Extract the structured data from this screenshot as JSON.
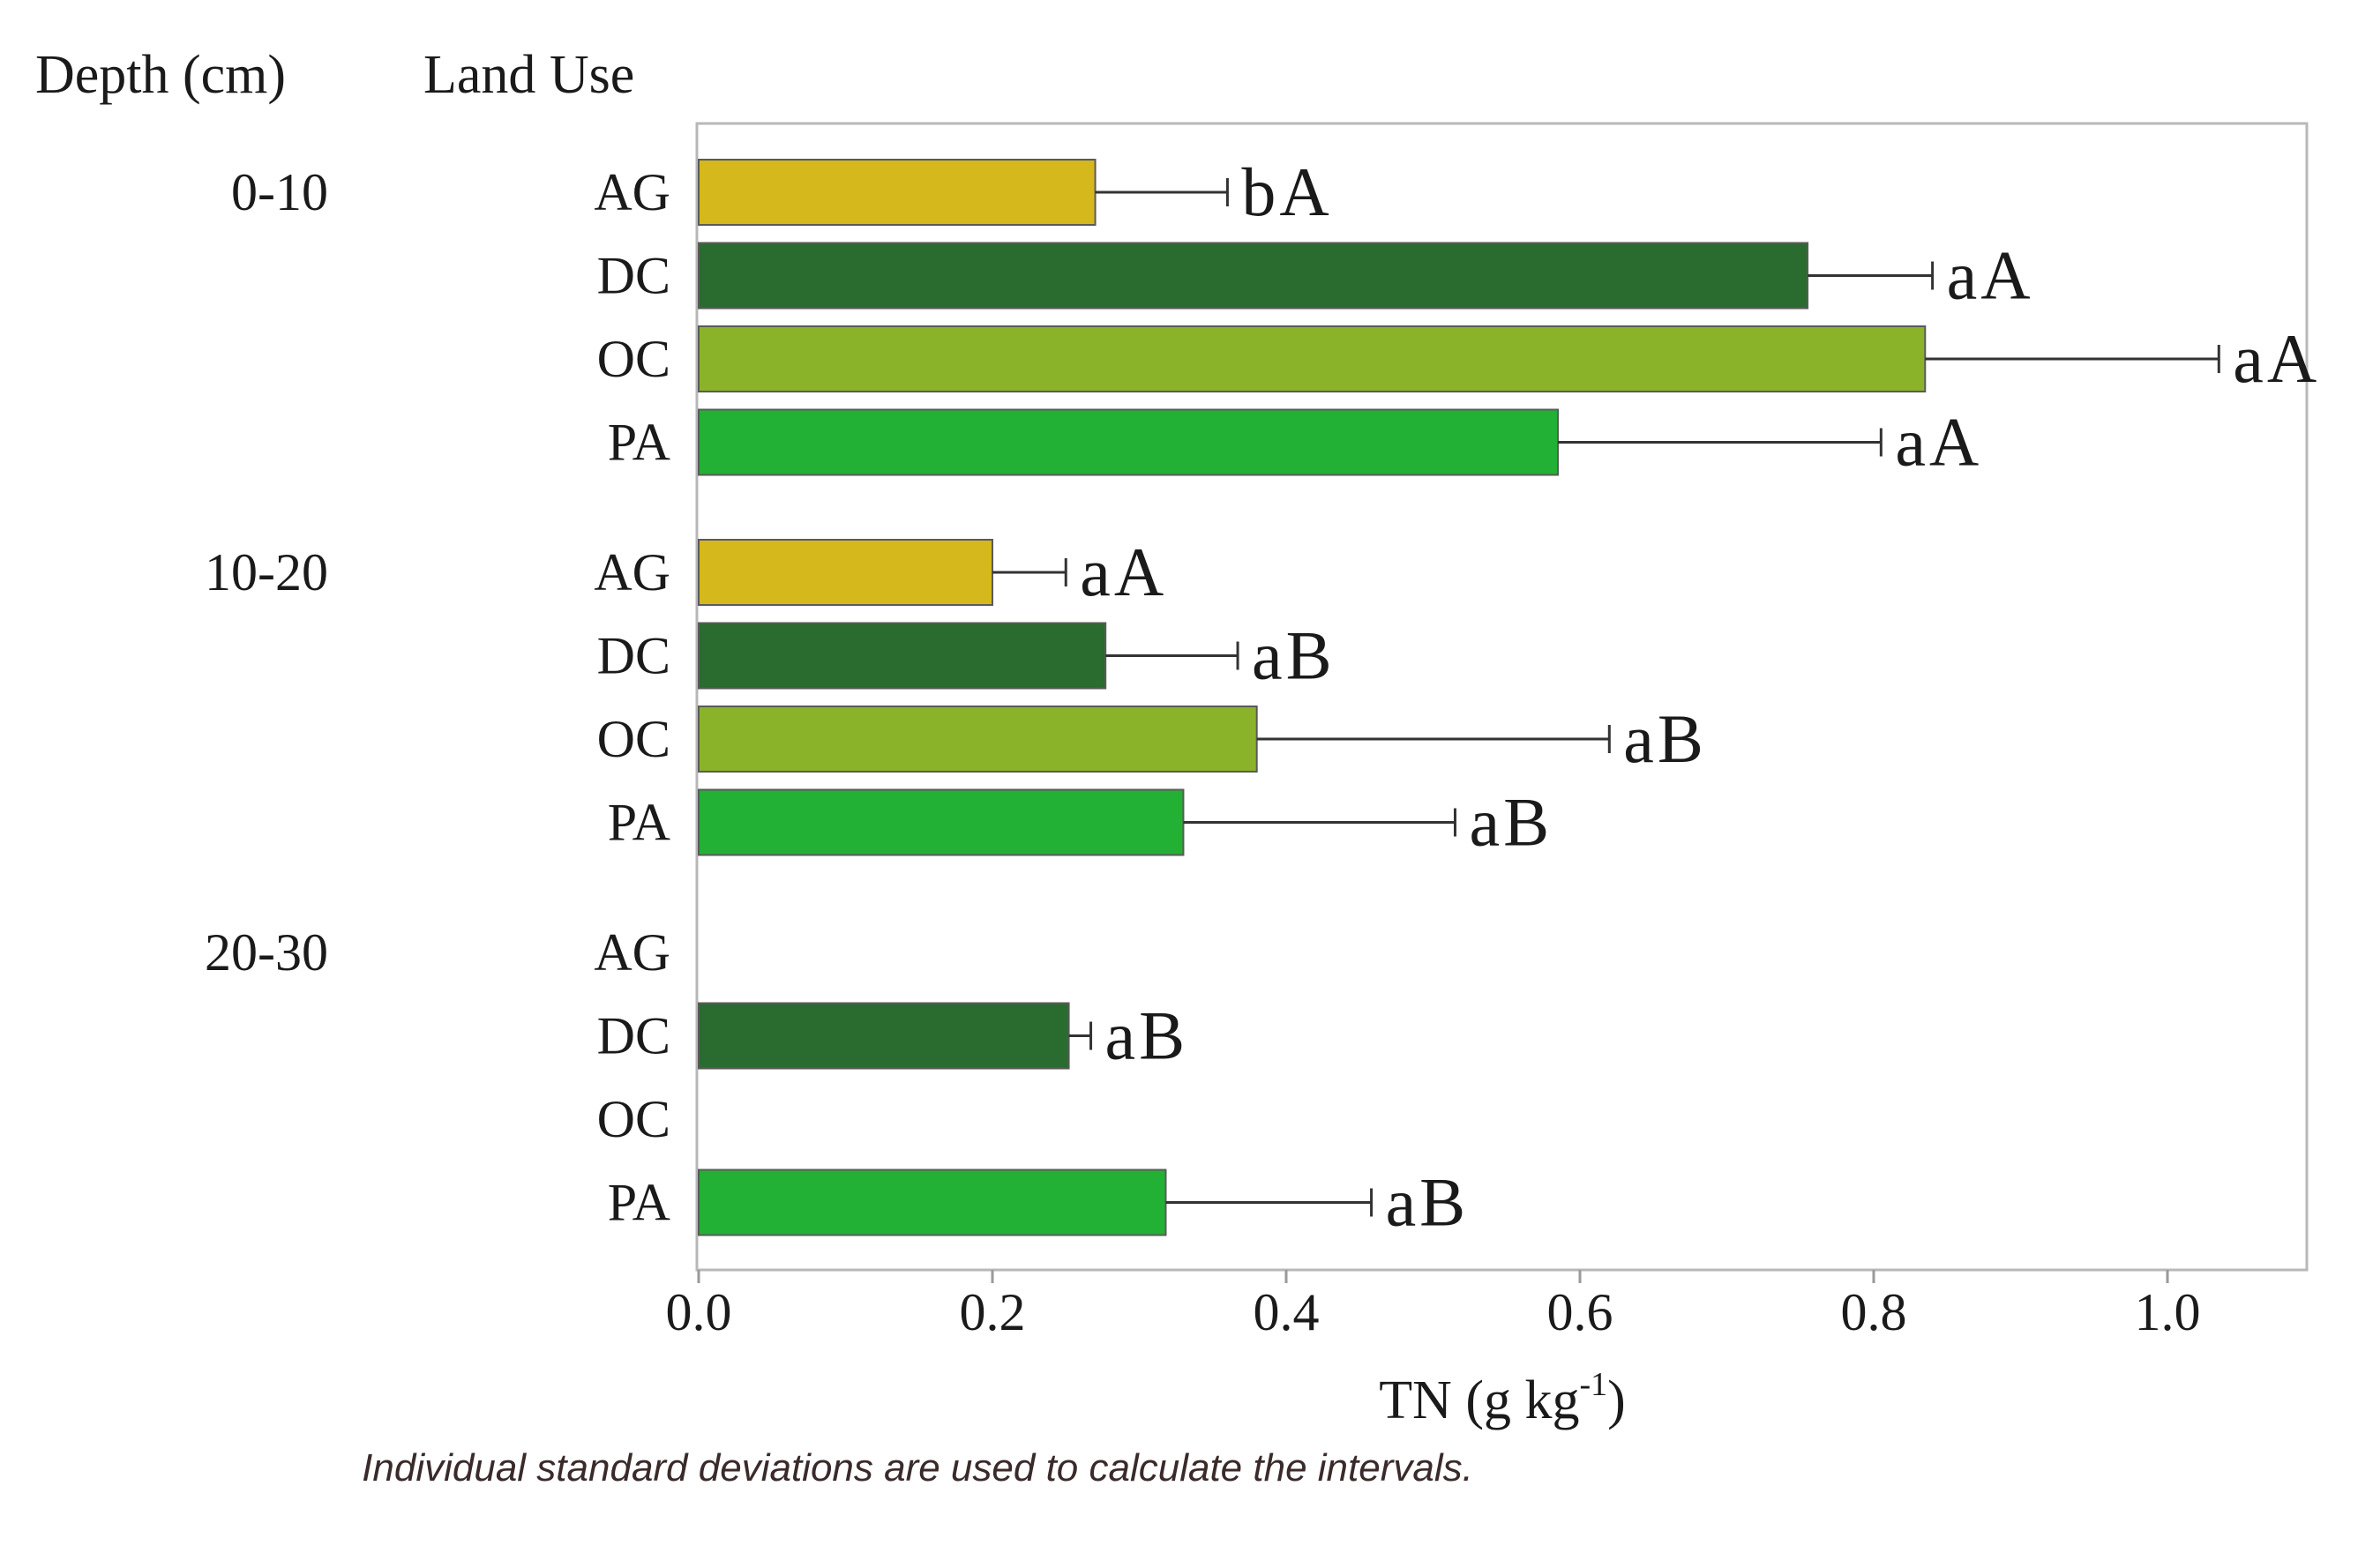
{
  "chart_data": {
    "type": "bar",
    "orientation": "horizontal",
    "header_depth": "Depth (cm)",
    "header_landuse": "Land Use",
    "xlabel_main": "TN (g kg",
    "xlabel_sup": "-1",
    "xlabel_close": ")",
    "xlim": [
      0,
      1.1
    ],
    "xticks": [
      "0.0",
      "0.2",
      "0.4",
      "0.6",
      "0.8",
      "1.0"
    ],
    "colors": {
      "AG": "#d4b81c",
      "DC": "#2a6b2f",
      "OC": "#8bb32a",
      "PA": "#22b135"
    },
    "groups": [
      {
        "depth": "0-10",
        "bars": [
          {
            "land_use": "AG",
            "value": 0.27,
            "error": 0.09,
            "label": "bA"
          },
          {
            "land_use": "DC",
            "value": 0.755,
            "error": 0.085,
            "label": "aA"
          },
          {
            "land_use": "OC",
            "value": 0.835,
            "error": 0.2,
            "label": "aA"
          },
          {
            "land_use": "PA",
            "value": 0.585,
            "error": 0.22,
            "label": "aA"
          }
        ]
      },
      {
        "depth": "10-20",
        "bars": [
          {
            "land_use": "AG",
            "value": 0.2,
            "error": 0.05,
            "label": "aA"
          },
          {
            "land_use": "DC",
            "value": 0.277,
            "error": 0.09,
            "label": "aB"
          },
          {
            "land_use": "OC",
            "value": 0.38,
            "error": 0.24,
            "label": "aB"
          },
          {
            "land_use": "PA",
            "value": 0.33,
            "error": 0.185,
            "label": "aB"
          }
        ]
      },
      {
        "depth": "20-30",
        "bars": [
          {
            "land_use": "AG",
            "value": null,
            "error": null,
            "label": ""
          },
          {
            "land_use": "DC",
            "value": 0.252,
            "error": 0.015,
            "label": "aB"
          },
          {
            "land_use": "OC",
            "value": null,
            "error": null,
            "label": ""
          },
          {
            "land_use": "PA",
            "value": 0.318,
            "error": 0.14,
            "label": "aB"
          }
        ]
      }
    ]
  },
  "caption": "Individual standard deviations are used to calculate the intervals."
}
